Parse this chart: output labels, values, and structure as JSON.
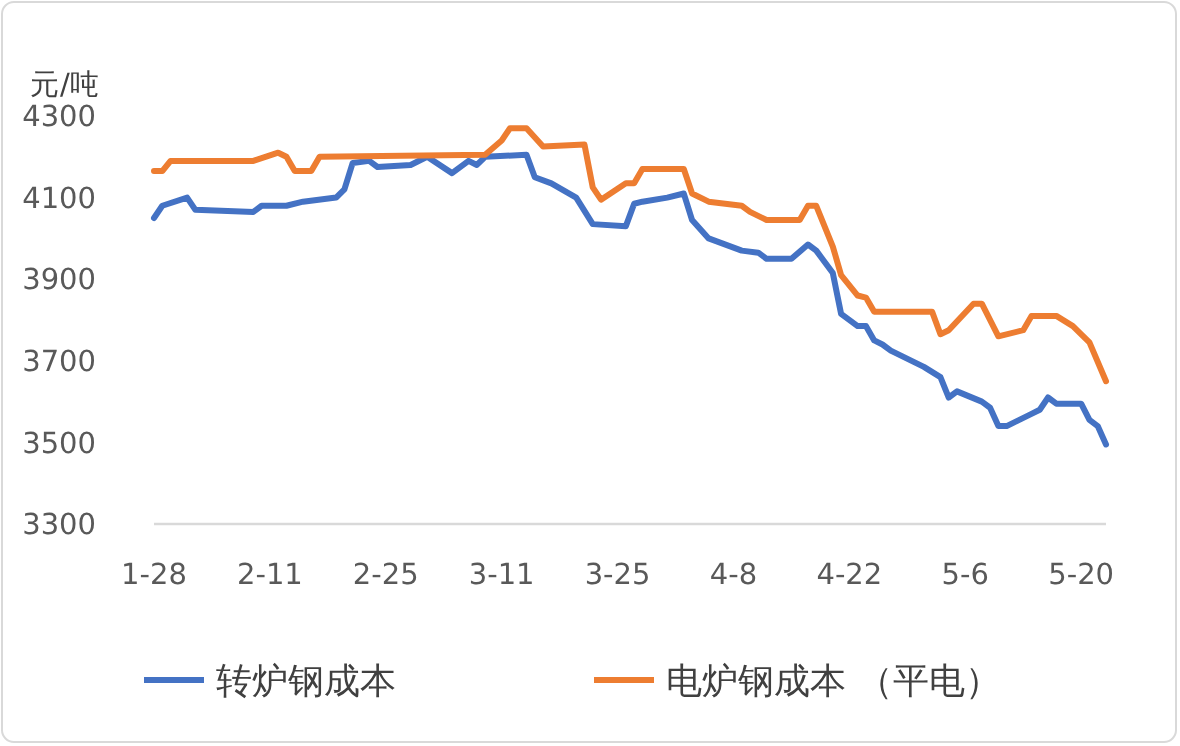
{
  "chart_data": {
    "type": "line",
    "ylabel": "元/吨",
    "xlim": [
      "--01-28",
      "--05-23"
    ],
    "xticks": [
      {
        "value": "--01-28",
        "label": "1-28"
      },
      {
        "value": "--02-11",
        "label": "2-11"
      },
      {
        "value": "--02-25",
        "label": "2-25"
      },
      {
        "value": "--03-11",
        "label": "3-11"
      },
      {
        "value": "--03-25",
        "label": "3-25"
      },
      {
        "value": "--04-08",
        "label": "4-8"
      },
      {
        "value": "--04-22",
        "label": "4-22"
      },
      {
        "value": "--05-06",
        "label": "5-6"
      },
      {
        "value": "--05-20",
        "label": "5-20"
      }
    ],
    "ylim": [
      3300,
      4300
    ],
    "yticks": [
      3300,
      3500,
      3700,
      3900,
      4100,
      4300
    ],
    "grid": false,
    "legend": "bottom",
    "marker": "none",
    "line_style": "solid",
    "series": [
      {
        "name": "转炉钢成本",
        "color": "#4472c4",
        "x": [
          "--01-28",
          "--01-29",
          "--02-01",
          "--02-02",
          "--02-09",
          "--02-10",
          "--02-13",
          "--02-15",
          "--02-19",
          "--02-20",
          "--02-21",
          "--02-23",
          "--02-24",
          "--02-28",
          "--03-02",
          "--03-05",
          "--03-07",
          "--03-08",
          "--03-09",
          "--03-14",
          "--03-15",
          "--03-17",
          "--03-20",
          "--03-22",
          "--03-26",
          "--03-27",
          "--03-28",
          "--03-31",
          "--04-02",
          "--04-03",
          "--04-05",
          "--04-09",
          "--04-11",
          "--04-12",
          "--04-15",
          "--04-17",
          "--04-18",
          "--04-20",
          "--04-21",
          "--04-23",
          "--04-24",
          "--04-25",
          "--04-26",
          "--04-27",
          "--05-01",
          "--05-03",
          "--05-04",
          "--05-05",
          "--05-08",
          "--05-09",
          "--05-10",
          "--05-11",
          "--05-14",
          "--05-15",
          "--05-16",
          "--05-17",
          "--05-20",
          "--05-21",
          "--05-22",
          "--05-23"
        ],
        "values": [
          4050,
          4080,
          4100,
          4070,
          4065,
          4080,
          4080,
          4090,
          4100,
          4120,
          4185,
          4190,
          4175,
          4180,
          4200,
          4160,
          4190,
          4180,
          4200,
          4205,
          4150,
          4135,
          4100,
          4035,
          4030,
          4085,
          4090,
          4100,
          4110,
          4045,
          4000,
          3970,
          3965,
          3950,
          3950,
          3985,
          3970,
          3915,
          3815,
          3785,
          3785,
          3750,
          3740,
          3725,
          3685,
          3660,
          3610,
          3625,
          3600,
          3585,
          3540,
          3540,
          3570,
          3580,
          3610,
          3595,
          3595,
          3555,
          3540,
          3495
        ]
      },
      {
        "name": "电炉钢成本 （平电）",
        "color": "#ed7d31",
        "x": [
          "--01-28",
          "--01-29",
          "--01-30",
          "--02-09",
          "--02-12",
          "--02-13",
          "--02-14",
          "--02-16",
          "--02-17",
          "--03-09",
          "--03-11",
          "--03-12",
          "--03-14",
          "--03-16",
          "--03-21",
          "--03-22",
          "--03-23",
          "--03-26",
          "--03-27",
          "--03-28",
          "--04-02",
          "--04-03",
          "--04-05",
          "--04-09",
          "--04-10",
          "--04-12",
          "--04-16",
          "--04-17",
          "--04-18",
          "--04-20",
          "--04-21",
          "--04-23",
          "--04-24",
          "--04-25",
          "--05-02",
          "--05-03",
          "--05-04",
          "--05-07",
          "--05-08",
          "--05-10",
          "--05-13",
          "--05-14",
          "--05-17",
          "--05-19",
          "--05-21",
          "--05-23"
        ],
        "values": [
          4165,
          4165,
          4190,
          4190,
          4210,
          4200,
          4165,
          4165,
          4200,
          4205,
          4240,
          4270,
          4270,
          4225,
          4230,
          4125,
          4095,
          4135,
          4135,
          4170,
          4170,
          4110,
          4090,
          4080,
          4065,
          4045,
          4045,
          4080,
          4080,
          3980,
          3910,
          3860,
          3855,
          3820,
          3820,
          3765,
          3775,
          3840,
          3840,
          3760,
          3775,
          3810,
          3810,
          3785,
          3745,
          3650
        ]
      }
    ]
  }
}
